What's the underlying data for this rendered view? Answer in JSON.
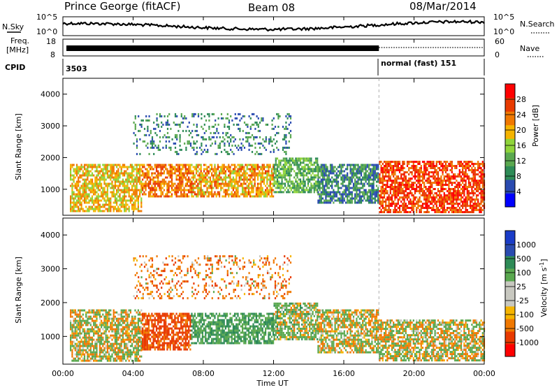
{
  "header": {
    "station": "Prince George (fitACF)",
    "beam": "Beam 08",
    "date": "08/Mar/2014"
  },
  "top_panels": {
    "nsky_label": "N.Sky",
    "nsky_ticks": [
      "10^5",
      "10^0"
    ],
    "nsearch_label": "N.Search",
    "nsearch_ticks": [
      "10^5",
      "10^0"
    ],
    "freq_label": "Freq.",
    "freq_unit": "[MHz]",
    "freq_ticks": [
      "18",
      "8"
    ],
    "nave_label": "Nave",
    "nave_ticks": [
      "60",
      "0"
    ],
    "cpid_label": "CPID",
    "cpid_first": "3503",
    "cpid_second": "normal (fast) 151"
  },
  "x_axis": {
    "title": "Time UT",
    "ticks": [
      "00:00",
      "04:00",
      "08:00",
      "12:00",
      "16:00",
      "20:00",
      "00:00"
    ]
  },
  "power_panel": {
    "ylabel": "Slant Range [km]",
    "yticks": [
      "4000",
      "3000",
      "2000",
      "1000"
    ],
    "colorbar_title": "Power [dB]",
    "colorbar_ticks": [
      "28",
      "24",
      "20",
      "16",
      "12",
      "8",
      "4"
    ],
    "colors": [
      "#0000ff",
      "#2a4bb0",
      "#2e8b57",
      "#5aa84f",
      "#8fd43a",
      "#f5b400",
      "#f07800",
      "#e83a00",
      "#ff0000"
    ]
  },
  "velocity_panel": {
    "ylabel": "Slant Range [km]",
    "yticks": [
      "4000",
      "3000",
      "2000",
      "1000"
    ],
    "colorbar_title": "Velocity [m s",
    "colorbar_title_sup": "-1",
    "colorbar_title_end": "]",
    "colorbar_ticks": [
      "1000",
      "500",
      "100",
      "25",
      "-25",
      "-100",
      "-500",
      "-1000"
    ],
    "colors": [
      "#ff0000",
      "#e83a00",
      "#f07800",
      "#f5b400",
      "#c8c8c0",
      "#c8c8c0",
      "#5aa84f",
      "#2e8b57",
      "#2a4bb0",
      "#1a3cc8"
    ]
  },
  "chart_data": [
    {
      "type": "heatmap",
      "title": "Power",
      "xlabel": "Time UT",
      "ylabel": "Slant Range [km]",
      "xlim": [
        0,
        24
      ],
      "ylim": [
        180,
        4500
      ],
      "colorbar_label": "Power [dB]",
      "colorbar_range": [
        0,
        32
      ],
      "regions": [
        {
          "t": [
            0.4,
            4.5
          ],
          "r": [
            300,
            1800
          ],
          "level": 20
        },
        {
          "t": [
            4.5,
            7.3
          ],
          "r": [
            800,
            1800
          ],
          "level": 24
        },
        {
          "t": [
            7.3,
            12
          ],
          "r": [
            800,
            1800
          ],
          "level": 22
        },
        {
          "t": [
            12,
            14.5
          ],
          "r": [
            900,
            2000
          ],
          "level": 12
        },
        {
          "t": [
            14.5,
            18
          ],
          "r": [
            600,
            1800
          ],
          "level": 8
        },
        {
          "t": [
            18,
            24
          ],
          "r": [
            300,
            1900
          ],
          "level": 28
        },
        {
          "t": [
            4,
            13
          ],
          "r": [
            2100,
            3400
          ],
          "level": 8
        }
      ]
    },
    {
      "type": "heatmap",
      "title": "Velocity",
      "xlabel": "Time UT",
      "ylabel": "Slant Range [km]",
      "xlim": [
        0,
        24
      ],
      "ylim": [
        180,
        4500
      ],
      "colorbar_label": "Velocity [m s-1]",
      "colorbar_range": [
        -1000,
        1000
      ],
      "regions": [
        {
          "t": [
            0.4,
            4.5
          ],
          "r": [
            300,
            1800
          ],
          "velocity": 0
        },
        {
          "t": [
            4.5,
            7.3
          ],
          "r": [
            600,
            1700
          ],
          "velocity": -400
        },
        {
          "t": [
            7.3,
            12
          ],
          "r": [
            800,
            1700
          ],
          "velocity": 300
        },
        {
          "t": [
            12,
            14.5
          ],
          "r": [
            900,
            2000
          ],
          "velocity": 100
        },
        {
          "t": [
            14.5,
            18
          ],
          "r": [
            500,
            1800
          ],
          "velocity": 0
        },
        {
          "t": [
            18,
            24
          ],
          "r": [
            300,
            1500
          ],
          "velocity": 0
        },
        {
          "t": [
            4,
            13
          ],
          "r": [
            2100,
            3400
          ],
          "velocity": -200
        }
      ]
    }
  ]
}
